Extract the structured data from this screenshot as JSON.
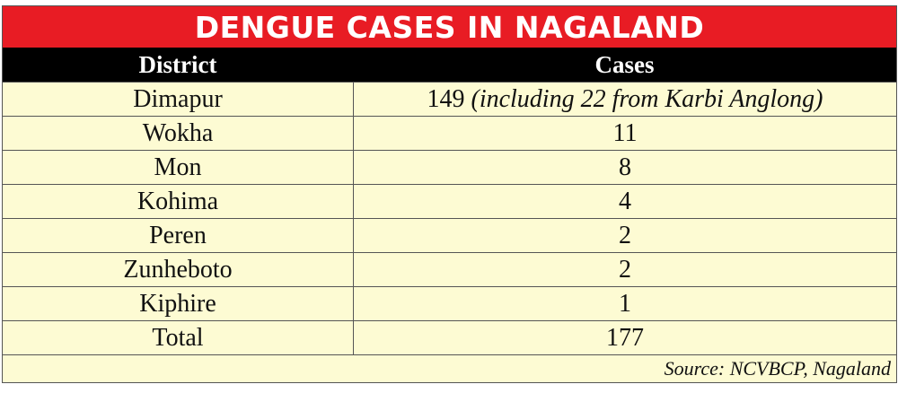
{
  "chart_data": {
    "type": "table",
    "title": "DENGUE CASES IN NAGALAND",
    "columns": [
      "District",
      "Cases"
    ],
    "rows": [
      {
        "district": "Dimapur",
        "cases": "149",
        "note": "(including 22 from Karbi Anglong)"
      },
      {
        "district": "Wokha",
        "cases": "11",
        "note": ""
      },
      {
        "district": "Mon",
        "cases": "8",
        "note": ""
      },
      {
        "district": "Kohima",
        "cases": "4",
        "note": ""
      },
      {
        "district": "Peren",
        "cases": "2",
        "note": ""
      },
      {
        "district": "Zunheboto",
        "cases": "2",
        "note": ""
      },
      {
        "district": "Kiphire",
        "cases": "1",
        "note": ""
      },
      {
        "district": "Total",
        "cases": "177",
        "note": ""
      }
    ],
    "source": "Source: NCVBCP, Nagaland"
  },
  "colors": {
    "title_bg": "#e81c24",
    "header_bg": "#000000",
    "body_bg": "#fdfbd3"
  }
}
